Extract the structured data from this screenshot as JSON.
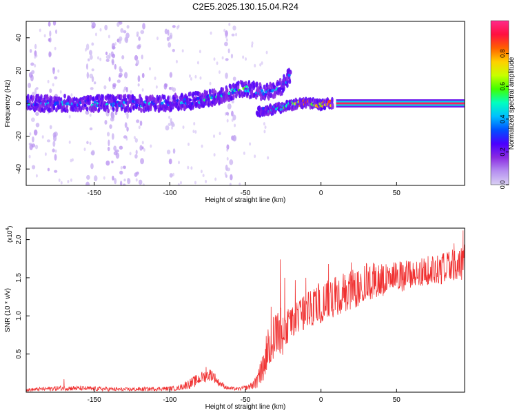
{
  "title": "C2E5.2025.130.15.04.R24",
  "colors": {
    "snr_line": "#f03030",
    "colormap": [
      "#d9d0f3",
      "#b58ef0",
      "#8a2be2",
      "#4a00ff",
      "#0050ff",
      "#00c0ff",
      "#00ffc0",
      "#40ff00",
      "#c8ff00",
      "#ffd000",
      "#ff6000",
      "#ff1040",
      "#ff2a8a"
    ]
  },
  "colorbar": {
    "label": "Normalized spectral amplitude",
    "ticks": [
      "0.0",
      "0.2",
      "0.4",
      "0.6",
      "0.8"
    ],
    "tick_values": [
      0.0,
      0.2,
      0.4,
      0.6,
      0.8
    ],
    "range": [
      0.0,
      1.0
    ]
  },
  "chart_data": [
    {
      "type": "heatmap",
      "title": "C2E5.2025.130.15.04.R24",
      "xlabel": "Height of straight line (km)",
      "ylabel": "Frequency (Hz)",
      "xlim": [
        -195,
        95
      ],
      "ylim": [
        -50,
        50
      ],
      "xticks": [
        -150,
        -100,
        -50,
        0,
        50
      ],
      "xtick_labels": [
        "-150",
        "-100",
        "-50",
        "0",
        "50"
      ],
      "yticks": [
        -40,
        -20,
        0,
        20,
        40
      ],
      "ytick_labels": [
        "-40",
        "-20",
        "0",
        "20",
        "40"
      ],
      "grid": false,
      "ridge": [
        {
          "x": -195,
          "f": 0,
          "amp": 0.35
        },
        {
          "x": -180,
          "f": 0,
          "amp": 0.32
        },
        {
          "x": -165,
          "f": 0,
          "amp": 0.33
        },
        {
          "x": -150,
          "f": 0,
          "amp": 0.34
        },
        {
          "x": -135,
          "f": 0,
          "amp": 0.33
        },
        {
          "x": -120,
          "f": 0,
          "amp": 0.31
        },
        {
          "x": -105,
          "f": 0,
          "amp": 0.32
        },
        {
          "x": -90,
          "f": 1,
          "amp": 0.35
        },
        {
          "x": -80,
          "f": 2,
          "amp": 0.38
        },
        {
          "x": -70,
          "f": 4,
          "amp": 0.42
        },
        {
          "x": -60,
          "f": 7,
          "amp": 0.44
        },
        {
          "x": -52,
          "f": 9,
          "amp": 0.45
        },
        {
          "x": -45,
          "f": 8,
          "amp": 0.42
        },
        {
          "x": -38,
          "f": 7,
          "amp": 0.4
        },
        {
          "x": -30,
          "f": 8,
          "amp": 0.38
        },
        {
          "x": -25,
          "f": 11,
          "amp": 0.33
        },
        {
          "x": -20,
          "f": 18,
          "amp": 0.3
        }
      ],
      "lower_branch": [
        {
          "x": -42,
          "f": -5,
          "amp": 0.3
        },
        {
          "x": -35,
          "f": -4,
          "amp": 0.34
        },
        {
          "x": -28,
          "f": -3,
          "amp": 0.4
        },
        {
          "x": -20,
          "f": -1,
          "amp": 0.5
        },
        {
          "x": -15,
          "f": 0,
          "amp": 0.65
        },
        {
          "x": -10,
          "f": 0.5,
          "amp": 0.8
        },
        {
          "x": -5,
          "f": 0,
          "amp": 0.6
        },
        {
          "x": 0,
          "f": -1,
          "amp": 0.7
        },
        {
          "x": 5,
          "f": 0,
          "amp": 0.75
        },
        {
          "x": 10,
          "f": 0,
          "amp": 0.95
        },
        {
          "x": 95,
          "f": 0,
          "amp": 0.95
        }
      ],
      "speckle_columns_x": [
        -190,
        -178,
        -152,
        -140,
        -135,
        -130,
        -120,
        -100,
        -60
      ]
    },
    {
      "type": "line",
      "xlabel": "Height of straight line (km)",
      "ylabel": "SNR (10 * v/v)",
      "y_multiplier_label": "(x10",
      "y_multiplier_exp": "4",
      "y_multiplier_close": ")",
      "xlim": [
        -195,
        95
      ],
      "ylim": [
        0,
        2.15
      ],
      "xticks": [
        -150,
        -100,
        -50,
        0,
        50
      ],
      "xtick_labels": [
        "-150",
        "-100",
        "-50",
        "0",
        "50"
      ],
      "yticks": [
        0.5,
        1.0,
        1.5,
        2.0
      ],
      "ytick_labels": [
        "0.5",
        "1.0",
        "1.5",
        "2.0"
      ],
      "grid": false,
      "series": [
        {
          "envelope": {
            "x": [
              -195,
              -170,
              -130,
              -95,
              -85,
              -78,
              -72,
              -68,
              -62,
              -55,
              -48,
              -42,
              -38,
              -35,
              -30,
              -27,
              -24,
              -20,
              -15,
              -10,
              -5,
              0,
              10,
              20,
              25,
              30,
              40,
              50,
              60,
              70,
              80,
              90,
              95
            ],
            "y_low": [
              0.01,
              0.02,
              0.01,
              0.02,
              0.05,
              0.12,
              0.15,
              0.08,
              0.03,
              0.02,
              0.03,
              0.05,
              0.15,
              0.3,
              0.5,
              0.4,
              0.55,
              0.7,
              0.75,
              0.8,
              0.85,
              0.9,
              1.0,
              1.08,
              1.12,
              1.2,
              1.25,
              1.3,
              1.35,
              1.4,
              1.42,
              1.45,
              1.45
            ],
            "y_high": [
              0.05,
              0.09,
              0.06,
              0.08,
              0.2,
              0.28,
              0.32,
              0.18,
              0.08,
              0.06,
              0.1,
              0.25,
              0.55,
              0.9,
              1.1,
              1.2,
              1.05,
              1.15,
              1.2,
              1.28,
              1.38,
              1.45,
              1.52,
              1.6,
              1.62,
              1.7,
              1.72,
              1.72,
              1.73,
              1.78,
              1.85,
              1.9,
              1.95
            ]
          },
          "spikes": [
            {
              "x": -170,
              "y": 0.17
            },
            {
              "x": -76,
              "y": 0.33
            },
            {
              "x": -33,
              "y": 1.12
            },
            {
              "x": -27,
              "y": 1.74
            },
            {
              "x": -24,
              "y": 1.5
            },
            {
              "x": -17,
              "y": 1.47
            },
            {
              "x": -10,
              "y": 1.5
            },
            {
              "x": 5,
              "y": 1.68
            },
            {
              "x": 20,
              "y": 1.7
            },
            {
              "x": 88,
              "y": 1.95
            },
            {
              "x": 94,
              "y": 2.12
            }
          ]
        }
      ]
    }
  ]
}
